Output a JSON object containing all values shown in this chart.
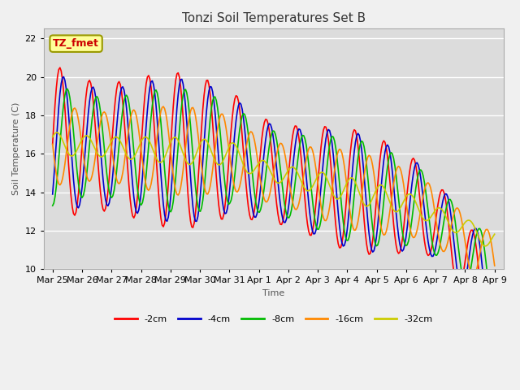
{
  "title": "Tonzi Soil Temperatures Set B",
  "xlabel": "Time",
  "ylabel": "Soil Temperature (C)",
  "ylim": [
    10,
    22.5
  ],
  "background_color": "#dcdcdc",
  "figure_color": "#f0f0f0",
  "grid_color": "#ffffff",
  "legend_label": "TZ_fmet",
  "legend_box_facecolor": "#ffff99",
  "legend_box_edgecolor": "#999900",
  "series_order": [
    "-2cm",
    "-4cm",
    "-8cm",
    "-16cm",
    "-32cm"
  ],
  "series_colors": {
    "-2cm": "#ff0000",
    "-4cm": "#0000cc",
    "-8cm": "#00bb00",
    "-16cm": "#ff8800",
    "-32cm": "#cccc00"
  },
  "tick_labels": [
    "Mar 25",
    "Mar 26",
    "Mar 27",
    "Mar 28",
    "Mar 29",
    "Mar 30",
    "Mar 31",
    "Apr 1",
    "Apr 2",
    "Apr 3",
    "Apr 4",
    "Apr 5",
    "Apr 6",
    "Apr 7",
    "Apr 8",
    "Apr 9"
  ],
  "tick_positions": [
    0,
    1,
    2,
    3,
    4,
    5,
    6,
    7,
    8,
    9,
    10,
    11,
    12,
    13,
    14,
    15
  ],
  "yticks": [
    10,
    12,
    14,
    16,
    18,
    20,
    22
  ]
}
